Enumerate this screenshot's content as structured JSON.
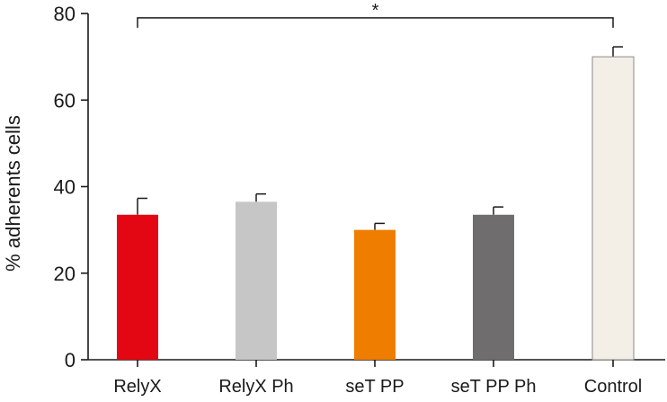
{
  "chart_data": {
    "type": "bar",
    "title": "",
    "xlabel": "",
    "ylabel": "% adherents cells",
    "ylim": [
      0,
      80
    ],
    "yticks": [
      0,
      20,
      40,
      60,
      80
    ],
    "grid": false,
    "categories": [
      "RelyX",
      "RelyX Ph",
      "seT PP",
      "seT PP Ph",
      "Control"
    ],
    "values": [
      33.5,
      36.5,
      30,
      33.5,
      70
    ],
    "errors": [
      3.8,
      1.8,
      1.5,
      1.8,
      2.3
    ],
    "colors": [
      "#e30613",
      "#c6c6c6",
      "#ef7d00",
      "#6f6d6e",
      "#f3efe6"
    ],
    "significance": {
      "from": "RelyX",
      "to": "Control",
      "label": "*",
      "level": 79
    }
  }
}
